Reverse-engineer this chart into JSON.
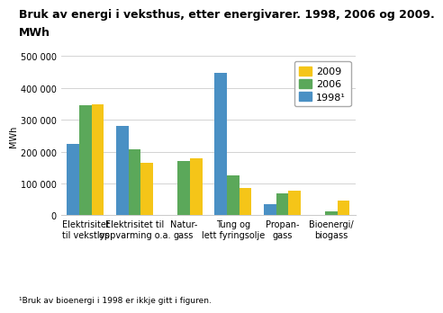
{
  "title_line1": "Bruk av energi i veksthus, etter energivarer. 1998, 2006 og 2009.",
  "title_line2": "MWh",
  "ylabel": "MWh",
  "footnote": "¹Bruk av bioenergi i 1998 er ikkje gitt i figuren.",
  "categories": [
    "Elektrisitet\ntil vekstlys",
    "Elektrisitet til\noppvarming o.a.",
    "Natur-\ngass",
    "Tung og\nlett fyringsolje",
    "Propan-\ngass",
    "Bioenergi/\nbiogass"
  ],
  "series": {
    "2009": [
      350000,
      165000,
      180000,
      85000,
      78000,
      47000
    ],
    "2006": [
      345000,
      207000,
      170000,
      125000,
      68000,
      13000
    ],
    "1998": [
      225000,
      280000,
      0,
      448000,
      35000,
      0
    ]
  },
  "colors": {
    "2009": "#F5C518",
    "2006": "#5BA85A",
    "1998": "#4A90C4"
  },
  "ylim": [
    0,
    500000
  ],
  "yticks": [
    0,
    100000,
    200000,
    300000,
    400000,
    500000
  ],
  "ytick_labels": [
    "0",
    "100 000",
    "200 000",
    "300 000",
    "400 000",
    "500 000"
  ],
  "legend_labels": [
    "2009",
    "2006",
    "1998¹"
  ],
  "bar_width": 0.25,
  "background_color": "#ffffff",
  "grid_color": "#cccccc",
  "title_fontsize": 9,
  "axis_fontsize": 7,
  "legend_fontsize": 8
}
